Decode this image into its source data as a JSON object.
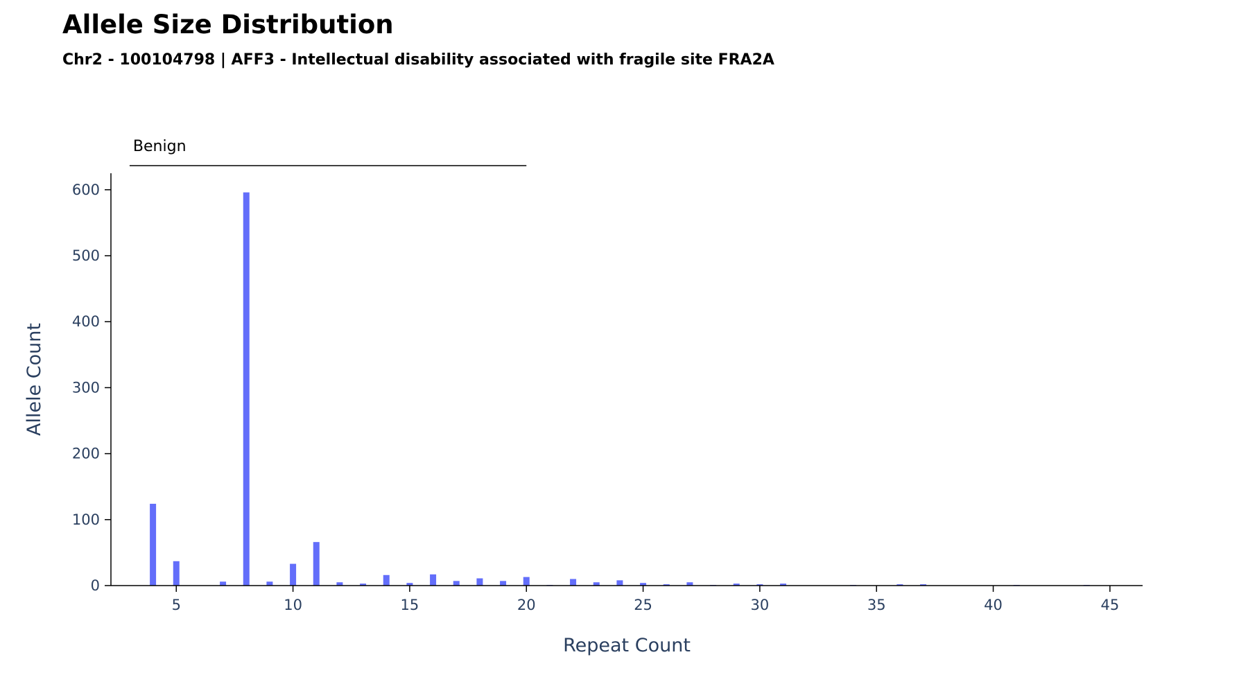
{
  "title": "Allele Size Distribution",
  "subtitle": "Chr2 - 100104798 | AFF3 - Intellectual disability associated with fragile site FRA2A",
  "chart_data": {
    "type": "bar",
    "xlabel": "Repeat Count",
    "ylabel": "Allele Count",
    "xlim": [
      2.2,
      46.4
    ],
    "ylim": [
      0,
      625
    ],
    "x_ticks": [
      5,
      10,
      15,
      20,
      25,
      30,
      35,
      40,
      45
    ],
    "y_ticks": [
      0,
      100,
      200,
      300,
      400,
      500,
      600
    ],
    "bar_color": "#636efa",
    "grid": false,
    "bands": [
      {
        "label": "Benign",
        "start": 3,
        "end": 20
      }
    ],
    "x": [
      4,
      5,
      7,
      8,
      9,
      10,
      11,
      12,
      13,
      14,
      15,
      16,
      17,
      18,
      19,
      20,
      21,
      22,
      23,
      24,
      25,
      26,
      27,
      28,
      29,
      30,
      31,
      34,
      36,
      37,
      41,
      44
    ],
    "values": [
      124,
      37,
      6,
      596,
      6,
      33,
      66,
      5,
      3,
      16,
      4,
      17,
      7,
      11,
      7,
      13,
      1,
      10,
      5,
      8,
      4,
      2,
      5,
      1,
      3,
      2,
      3,
      1,
      2,
      2,
      1,
      1
    ]
  }
}
